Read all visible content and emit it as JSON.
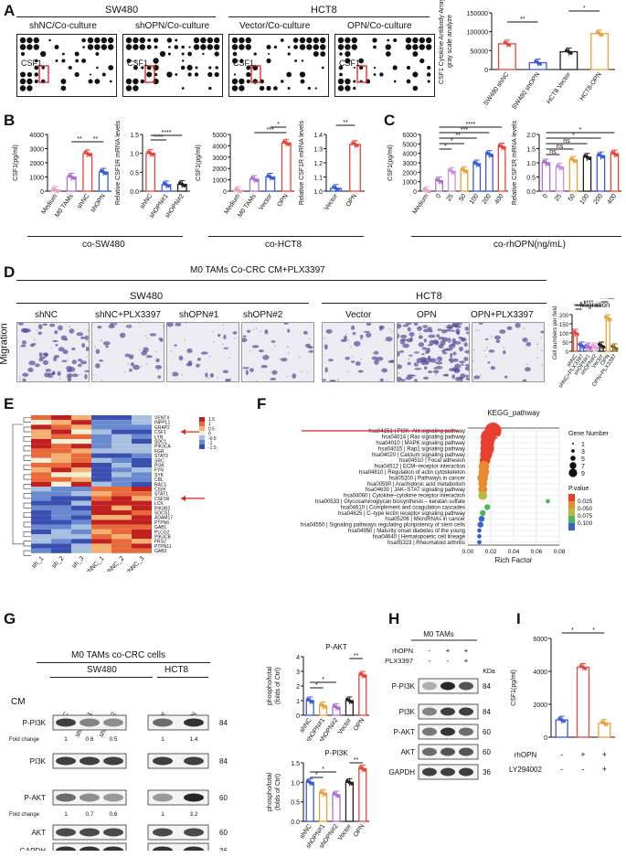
{
  "figure": {
    "panelA": {
      "label": "A",
      "groups": [
        "SW480",
        "HCT8"
      ],
      "arrays": [
        "shNC/Co-culture",
        "shOPN/Co-culture",
        "Vector/Co-culture",
        "OPN/Co-culture"
      ],
      "spot_label": "CSF1",
      "bar": {
        "ylabel_1": "CSF1 Cytokine Antibody Array",
        "ylabel_2": "gray scale analyze",
        "ylim": [
          0,
          150000
        ],
        "yticks": [
          "0",
          "50000",
          "100000",
          "150000"
        ],
        "categories": [
          "SW480 shNC",
          "SW480 shOPN",
          "HCT8 Vector",
          "HCT8-OPN"
        ],
        "values": [
          68000,
          18000,
          47000,
          95000
        ],
        "colors": [
          "#e8463a",
          "#3a5bd9",
          "#222222",
          "#e8a33a"
        ],
        "sig": [
          "**",
          "*"
        ]
      }
    },
    "panelB": {
      "label": "B",
      "c1": {
        "ylabel": "CSF1(pg/ml)",
        "yticks": [
          "0",
          "1000",
          "2000",
          "3000",
          "4000"
        ],
        "categories": [
          "Medium",
          "M0 TAMs",
          "shNC",
          "shOPN"
        ],
        "values": [
          80,
          1000,
          2650,
          1350
        ],
        "colors": [
          "#e8a0c8",
          "#b070d0",
          "#e8463a",
          "#3a5bd9"
        ],
        "sig": [
          "**",
          "**"
        ]
      },
      "c2": {
        "ylabel": "Relative CSF1R mRNA levels",
        "yticks": [
          "0.0",
          "0.5",
          "1.0",
          "1.5"
        ],
        "categories": [
          "shNC",
          "shOPN#1",
          "shOPN#2"
        ],
        "values": [
          1.0,
          0.17,
          0.18
        ],
        "colors": [
          "#e8463a",
          "#3a5bd9",
          "#222222"
        ],
        "sig": [
          "****",
          "****"
        ]
      },
      "c3": {
        "ylabel": "CSF1(pg/ml)",
        "yticks": [
          "0",
          "1000",
          "2000",
          "3000",
          "4000",
          "5000"
        ],
        "categories": [
          "Medium",
          "M0 TAMs",
          "Vector",
          "OPN"
        ],
        "values": [
          80,
          1050,
          1250,
          4250
        ],
        "colors": [
          "#e8a0c8",
          "#b070d0",
          "#3a5bd9",
          "#e8463a"
        ],
        "sig": [
          "*",
          "***"
        ]
      },
      "c4": {
        "ylabel": "Relative CSF1R mRNA levels",
        "yticks": [
          "1.0",
          "1.1",
          "1.2",
          "1.3",
          "1.4"
        ],
        "categories": [
          "Vector",
          "OPN"
        ],
        "values": [
          1.02,
          1.33
        ],
        "colors": [
          "#3a5bd9",
          "#e8463a"
        ],
        "sig": [
          "**"
        ]
      },
      "xlab1": "co-SW480",
      "xlab2": "co-HCT8"
    },
    "panelC": {
      "label": "C",
      "c1": {
        "ylabel": "CSF1(pg/ml)",
        "yticks": [
          "0",
          "1000",
          "2000",
          "3000",
          "4000",
          "5000",
          "6000"
        ],
        "categories": [
          "Medium",
          "0",
          "25",
          "50",
          "100",
          "200",
          "400"
        ],
        "values": [
          80,
          1100,
          2100,
          2200,
          2900,
          3900,
          4700
        ],
        "colors": [
          "#e8a0c8",
          "#b070d0",
          "#c890e0",
          "#e8a33a",
          "#3a5bd9",
          "#3a5bd9",
          "#e8463a"
        ],
        "sig": [
          "*",
          "*",
          "**",
          "***",
          "****"
        ]
      },
      "c2": {
        "ylabel": "Relative CSF1R mRNA levels",
        "yticks": [
          "0.0",
          "0.5",
          "1.0",
          "1.5",
          "2.0"
        ],
        "categories": [
          "0",
          "25",
          "50",
          "100",
          "200",
          "400"
        ],
        "values": [
          1.0,
          0.85,
          1.1,
          1.2,
          1.25,
          1.32
        ],
        "colors": [
          "#b070d0",
          "#c890e0",
          "#e8a33a",
          "#222222",
          "#3a5bd9",
          "#e8463a"
        ],
        "sig": [
          "ns",
          "ns",
          "ns",
          "*",
          "*"
        ]
      },
      "xlab": "co-rhOPN(ng/mL)"
    },
    "panelD": {
      "label": "D",
      "title": "M0 TAMs Co-CRC CM+PLX3397",
      "groups": [
        "SW480",
        "HCT8"
      ],
      "side": "Migration",
      "images": [
        "shNC",
        "shNC+PLX3397",
        "shOPN#1",
        "shOPN#2",
        "Vector",
        "OPN",
        "OPN+PLX3397"
      ],
      "bar": {
        "title": "Migration",
        "ylabel": "Cell numbers per field",
        "yticks": [
          "0",
          "50",
          "100",
          "150",
          "200"
        ],
        "categories": [
          "shNC",
          "shNC+PLX3397",
          "shOPN#1",
          "shOPN#2",
          "Vector",
          "OPN",
          "OPN+PLX3397"
        ],
        "values": [
          100,
          30,
          25,
          25,
          30,
          180,
          20
        ],
        "colors": [
          "#e8463a",
          "#3a5bd9",
          "#b070d0",
          "#e8a0c8",
          "#222222",
          "#e8a33a",
          "#8a6a1a"
        ],
        "sig": [
          "****",
          "****",
          "****",
          "****"
        ]
      }
    },
    "panelE": {
      "label": "E",
      "genes": [
        "VENTX",
        "INPPL1",
        "GRAP2",
        "CSF1",
        "LYN",
        "SDC1",
        "PIK3CA",
        "FGR",
        "STAT3",
        "SRC",
        "PI3K",
        "FYN",
        "SYK",
        "CBL",
        "RAC1",
        "CISH",
        "STAT1",
        "CSF1R",
        "LCK",
        "PIK3R2",
        "SOCS1",
        "ADAM17",
        "PTPN6",
        "GAB1",
        "PLCG2",
        "PIK3CB",
        "FRS2",
        "PTPN11",
        "GAB3"
      ],
      "columns": [
        "sh_1",
        "sh_2",
        "sh_3",
        "shNC_1",
        "shNC_2",
        "shNC_3"
      ],
      "legend": [
        "1.5",
        "1",
        "0.5",
        "0",
        "-0.5",
        "-1",
        "-1.5"
      ]
    },
    "panelF": {
      "label": "F",
      "title": "KEGG_pathway",
      "xlabel": "Rich Factor",
      "xticks": [
        "0.00",
        "0.02",
        "0.04",
        "0.06",
        "0.08"
      ],
      "pathways": [
        "hsa04151 | PI3K–Akt signaling pathway",
        "hsa04014 | Ras signaling pathway",
        "hsa04010 | MAPK signaling pathway",
        "hsa04015 | Rap1 signaling pathway",
        "hsa04020 | Calcium signaling pathway",
        "hsa04510 | Focal adhesion",
        "hsa04512 | ECM–receptor interaction",
        "hsa04810 | Regulation of actin cytoskeleton",
        "hsa05200 | Pathways in cancer",
        "hsa00590 | Arachidonic acid metabolism",
        "hsa04630 | JAK–STAT signaling pathway",
        "hsa04060 | Cytokine–cytokine receptor interaction",
        "hsa00533 | Glycosaminoglycan biosynthesis – keratan sulfate",
        "hsa04610 | Complement and coagulation cascades",
        "hsa04625 | C–type lectin receptor signaling pathway",
        "hsa05206 | MicroRNAs in cancer",
        "hsa04550 | Signaling pathways regulating pluripotency of stem cells",
        "hsa04950 | Maturity onset diabetes of the young",
        "hsa04640 | Hematopoietic cell lineage",
        "hsa05323 | Rheumatoid arthritis"
      ],
      "rich": [
        0.022,
        0.018,
        0.017,
        0.017,
        0.016,
        0.015,
        0.014,
        0.014,
        0.013,
        0.013,
        0.013,
        0.013,
        0.07,
        0.017,
        0.013,
        0.012,
        0.011,
        0.01,
        0.01,
        0.01
      ],
      "genes": [
        9,
        8,
        7,
        7,
        6,
        5,
        5,
        5,
        5,
        4,
        4,
        4,
        1,
        2,
        2,
        2,
        2,
        1,
        1,
        1
      ],
      "pval": [
        0.002,
        0.004,
        0.006,
        0.007,
        0.012,
        0.018,
        0.022,
        0.025,
        0.028,
        0.032,
        0.036,
        0.04,
        0.06,
        0.065,
        0.075,
        0.08,
        0.085,
        0.095,
        0.098,
        0.1
      ],
      "gene_legend_title": "Gene Number",
      "gene_legend": [
        "1",
        "3",
        "5",
        "7",
        "9"
      ],
      "p_legend_title": "P.value",
      "p_legend": [
        "0.025",
        "0.050",
        "0.075",
        "0.100"
      ]
    },
    "panelG": {
      "label": "G",
      "title": "M0 TAMs co-CRC cells",
      "groups": [
        "SW480",
        "HCT8"
      ],
      "cm": "CM",
      "lanes": [
        "shNC",
        "shOPN#1",
        "shOPN#2",
        "Vector",
        "OPN"
      ],
      "rows": [
        "P-PI3K",
        "PI3K",
        "P-AKT",
        "AKT",
        "GAPDH"
      ],
      "kda": [
        "84",
        "84",
        "60",
        "60",
        "36"
      ],
      "fc_label": "Fold change",
      "fc1": [
        "1",
        "0.6",
        "0.5",
        "1",
        "1.4"
      ],
      "fc2": [
        "1",
        "0.7",
        "0.6",
        "1",
        "3.2"
      ],
      "bar1": {
        "title": "P-AKT",
        "ylabel_1": "phospho/total",
        "ylabel_2": "(folds of Ctrl)",
        "yticks": [
          "0",
          "1",
          "2",
          "3",
          "4"
        ],
        "categories": [
          "shNC",
          "shOPN#1",
          "shOPN#2",
          "Vector",
          "OPN"
        ],
        "values": [
          1.0,
          0.65,
          0.55,
          1.0,
          2.75
        ],
        "colors": [
          "#3a5bd9",
          "#e8a33a",
          "#b070d0",
          "#222222",
          "#e8463a"
        ],
        "sig": [
          "*",
          "*",
          "**"
        ]
      },
      "bar2": {
        "title": "P-PI3K",
        "ylabel_1": "phospho/total",
        "ylabel_2": "(folds of Ctrl)",
        "yticks": [
          "0.0",
          "0.5",
          "1.0",
          "1.5"
        ],
        "categories": [
          "shNC",
          "shOPN#1",
          "shOPN#2",
          "Vector",
          "OPN"
        ],
        "values": [
          1.0,
          0.72,
          0.68,
          1.0,
          1.35
        ],
        "colors": [
          "#3a5bd9",
          "#e8a33a",
          "#b070d0",
          "#222222",
          "#e8463a"
        ],
        "sig": [
          "*",
          "*",
          "**"
        ]
      }
    },
    "panelH": {
      "label": "H",
      "title": "M0 TAMs",
      "conds": [
        {
          "name": "rhOPN",
          "vals": [
            "-",
            "+",
            "+"
          ]
        },
        {
          "name": "PLX3397",
          "vals": [
            "-",
            "-",
            "+"
          ]
        }
      ],
      "rows": [
        "P-PI3K",
        "PI3K",
        "P-AKT",
        "AKT",
        "GAPDH"
      ],
      "kda_title": "KDa",
      "kda": [
        "84",
        "84",
        "60",
        "60",
        "36"
      ]
    },
    "panelI": {
      "label": "I",
      "ylabel": "CSF1(pg/ml)",
      "yticks": [
        "0",
        "2000",
        "4000",
        "6000"
      ],
      "values": [
        1050,
        4250,
        850
      ],
      "colors": [
        "#3a5bd9",
        "#e8463a",
        "#e8a33a"
      ],
      "conds": [
        {
          "name": "rhOPN",
          "vals": [
            "-",
            "+",
            "+"
          ]
        },
        {
          "name": "LY294002",
          "vals": [
            "-",
            "-",
            "+"
          ]
        }
      ],
      "sig": [
        "*",
        "*"
      ]
    }
  }
}
